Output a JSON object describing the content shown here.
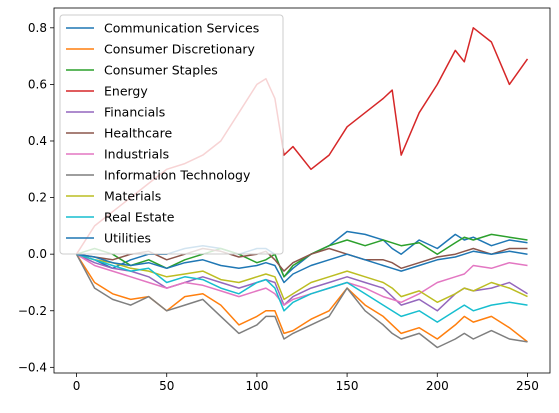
{
  "chart_data": {
    "type": "line",
    "title": "",
    "xlabel": "",
    "ylabel": "",
    "xlim": [
      -12.5,
      262.5
    ],
    "ylim": [
      -0.42,
      0.87
    ],
    "xticks": [
      0,
      50,
      100,
      150,
      200,
      250
    ],
    "yticks": [
      -0.4,
      -0.2,
      0.0,
      0.2,
      0.4,
      0.6,
      0.8
    ],
    "ytick_labels": [
      "−0.4",
      "−0.2",
      "0.0",
      "0.2",
      "0.4",
      "0.6",
      "0.8"
    ],
    "grid": false,
    "legend_position": "upper-left",
    "x": [
      0,
      10,
      20,
      30,
      40,
      50,
      60,
      70,
      80,
      90,
      100,
      105,
      110,
      115,
      120,
      130,
      140,
      150,
      160,
      170,
      175,
      180,
      190,
      200,
      210,
      215,
      220,
      230,
      240,
      250
    ],
    "series": [
      {
        "name": "Communication Services",
        "color": "#1f77b4",
        "values": [
          0.0,
          -0.02,
          -0.05,
          -0.02,
          0.0,
          0.0,
          0.02,
          0.03,
          0.02,
          0.0,
          0.02,
          0.02,
          0.0,
          -0.08,
          -0.05,
          0.0,
          0.03,
          0.08,
          0.07,
          0.05,
          0.02,
          0.0,
          0.05,
          0.02,
          0.07,
          0.05,
          0.06,
          0.03,
          0.05,
          0.04
        ]
      },
      {
        "name": "Consumer Discretionary",
        "color": "#ff7f0e",
        "values": [
          0.0,
          -0.1,
          -0.14,
          -0.16,
          -0.15,
          -0.2,
          -0.15,
          -0.14,
          -0.18,
          -0.25,
          -0.22,
          -0.2,
          -0.2,
          -0.28,
          -0.27,
          -0.23,
          -0.2,
          -0.12,
          -0.18,
          -0.22,
          -0.25,
          -0.28,
          -0.26,
          -0.3,
          -0.25,
          -0.22,
          -0.24,
          -0.22,
          -0.26,
          -0.31
        ]
      },
      {
        "name": "Consumer Staples",
        "color": "#2ca02c",
        "values": [
          0.0,
          0.02,
          0.0,
          -0.04,
          -0.02,
          -0.05,
          -0.02,
          0.0,
          0.02,
          0.0,
          -0.03,
          -0.02,
          0.0,
          -0.08,
          -0.04,
          0.0,
          0.03,
          0.05,
          0.03,
          0.05,
          0.04,
          0.03,
          0.04,
          0.0,
          0.04,
          0.06,
          0.05,
          0.07,
          0.06,
          0.05
        ]
      },
      {
        "name": "Energy",
        "color": "#d62728",
        "values": [
          0.0,
          0.1,
          0.15,
          0.2,
          0.25,
          0.3,
          0.32,
          0.35,
          0.4,
          0.5,
          0.6,
          0.62,
          0.55,
          0.35,
          0.38,
          0.3,
          0.35,
          0.45,
          0.5,
          0.55,
          0.58,
          0.35,
          0.5,
          0.6,
          0.72,
          0.68,
          0.8,
          0.75,
          0.6,
          0.69
        ]
      },
      {
        "name": "Financials",
        "color": "#9467bd",
        "values": [
          0.0,
          -0.03,
          -0.05,
          -0.06,
          -0.08,
          -0.12,
          -0.1,
          -0.08,
          -0.1,
          -0.12,
          -0.1,
          -0.09,
          -0.1,
          -0.18,
          -0.15,
          -0.12,
          -0.1,
          -0.08,
          -0.1,
          -0.12,
          -0.15,
          -0.18,
          -0.16,
          -0.2,
          -0.14,
          -0.12,
          -0.13,
          -0.12,
          -0.1,
          -0.14
        ]
      },
      {
        "name": "Healthcare",
        "color": "#8c564b",
        "values": [
          0.0,
          -0.01,
          -0.02,
          0.0,
          0.01,
          -0.02,
          0.0,
          0.02,
          0.01,
          -0.01,
          0.0,
          0.01,
          -0.02,
          -0.06,
          -0.03,
          0.0,
          0.02,
          0.0,
          -0.02,
          -0.02,
          -0.03,
          -0.05,
          -0.03,
          -0.01,
          0.0,
          0.01,
          0.02,
          0.0,
          0.02,
          0.02
        ]
      },
      {
        "name": "Industrials",
        "color": "#e377c2",
        "values": [
          0.0,
          -0.04,
          -0.06,
          -0.08,
          -0.1,
          -0.12,
          -0.1,
          -0.11,
          -0.13,
          -0.15,
          -0.13,
          -0.12,
          -0.14,
          -0.18,
          -0.16,
          -0.14,
          -0.12,
          -0.1,
          -0.12,
          -0.15,
          -0.16,
          -0.17,
          -0.14,
          -0.1,
          -0.08,
          -0.07,
          -0.04,
          -0.05,
          -0.03,
          -0.04
        ]
      },
      {
        "name": "Information Technology",
        "color": "#7f7f7f",
        "values": [
          0.0,
          -0.12,
          -0.16,
          -0.18,
          -0.15,
          -0.2,
          -0.18,
          -0.16,
          -0.22,
          -0.28,
          -0.25,
          -0.22,
          -0.22,
          -0.3,
          -0.28,
          -0.25,
          -0.22,
          -0.12,
          -0.2,
          -0.25,
          -0.28,
          -0.3,
          -0.28,
          -0.33,
          -0.3,
          -0.28,
          -0.3,
          -0.27,
          -0.3,
          -0.31
        ]
      },
      {
        "name": "Materials",
        "color": "#bcbd22",
        "values": [
          0.0,
          -0.02,
          -0.03,
          -0.05,
          -0.06,
          -0.08,
          -0.07,
          -0.06,
          -0.09,
          -0.1,
          -0.08,
          -0.07,
          -0.08,
          -0.16,
          -0.14,
          -0.1,
          -0.08,
          -0.06,
          -0.08,
          -0.1,
          -0.12,
          -0.15,
          -0.13,
          -0.17,
          -0.14,
          -0.12,
          -0.13,
          -0.1,
          -0.12,
          -0.15
        ]
      },
      {
        "name": "Real Estate",
        "color": "#17becf",
        "values": [
          0.0,
          -0.02,
          -0.04,
          -0.06,
          -0.05,
          -0.1,
          -0.08,
          -0.09,
          -0.12,
          -0.14,
          -0.1,
          -0.09,
          -0.12,
          -0.2,
          -0.17,
          -0.14,
          -0.12,
          -0.1,
          -0.14,
          -0.18,
          -0.2,
          -0.22,
          -0.2,
          -0.24,
          -0.2,
          -0.18,
          -0.2,
          -0.18,
          -0.17,
          -0.18
        ]
      },
      {
        "name": "Utilities",
        "color": "#1f77b4",
        "values": [
          0.0,
          -0.01,
          -0.03,
          -0.04,
          -0.03,
          -0.05,
          -0.03,
          -0.02,
          -0.04,
          -0.05,
          -0.04,
          -0.03,
          -0.04,
          -0.1,
          -0.07,
          -0.04,
          -0.02,
          0.0,
          -0.02,
          -0.04,
          -0.05,
          -0.06,
          -0.04,
          -0.02,
          -0.01,
          0.0,
          0.01,
          0.0,
          0.01,
          0.0
        ]
      }
    ]
  }
}
